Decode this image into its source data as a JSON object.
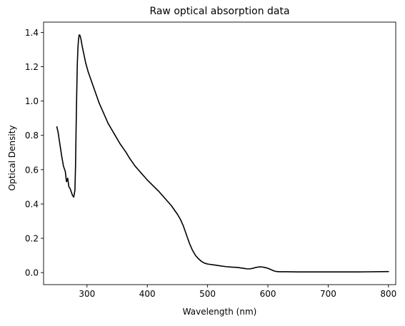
{
  "chart_data": {
    "type": "line",
    "title": "Raw optical absorption data",
    "xlabel": "Wavelength (nm)",
    "ylabel": "Optical Density",
    "xlim": [
      228,
      812
    ],
    "ylim": [
      -0.07,
      1.46
    ],
    "xticks": [
      300,
      400,
      500,
      600,
      700,
      800
    ],
    "yticks": [
      0.0,
      0.2,
      0.4,
      0.6,
      0.8,
      1.0,
      1.2,
      1.4
    ],
    "xtick_labels": [
      "300",
      "400",
      "500",
      "600",
      "700",
      "800"
    ],
    "ytick_labels": [
      "0.0",
      "0.2",
      "0.4",
      "0.6",
      "0.8",
      "1.0",
      "1.2",
      "1.4"
    ],
    "grid": false,
    "series": [
      {
        "color": "#000000",
        "x": [
          250,
          252,
          255,
          258,
          261,
          264,
          266,
          268,
          270,
          272,
          274,
          276,
          278,
          280,
          281,
          282,
          283,
          284,
          285,
          286,
          287,
          288,
          289,
          290,
          292,
          295,
          298,
          302,
          306,
          310,
          315,
          320,
          325,
          330,
          335,
          340,
          345,
          350,
          355,
          360,
          365,
          370,
          375,
          380,
          385,
          390,
          395,
          400,
          410,
          420,
          430,
          440,
          450,
          455,
          460,
          465,
          470,
          475,
          480,
          485,
          490,
          495,
          500,
          510,
          520,
          530,
          540,
          550,
          560,
          565,
          570,
          575,
          580,
          585,
          590,
          595,
          600,
          605,
          610,
          615,
          620,
          625,
          630,
          650,
          700,
          750,
          800
        ],
        "y": [
          0.85,
          0.82,
          0.75,
          0.68,
          0.62,
          0.59,
          0.53,
          0.55,
          0.5,
          0.49,
          0.47,
          0.45,
          0.44,
          0.48,
          0.62,
          0.85,
          1.05,
          1.22,
          1.31,
          1.36,
          1.385,
          1.385,
          1.375,
          1.36,
          1.32,
          1.27,
          1.22,
          1.17,
          1.13,
          1.09,
          1.04,
          0.99,
          0.95,
          0.91,
          0.87,
          0.84,
          0.81,
          0.78,
          0.75,
          0.725,
          0.7,
          0.67,
          0.645,
          0.62,
          0.6,
          0.58,
          0.56,
          0.54,
          0.505,
          0.47,
          0.43,
          0.39,
          0.34,
          0.31,
          0.27,
          0.22,
          0.17,
          0.13,
          0.1,
          0.08,
          0.065,
          0.055,
          0.05,
          0.045,
          0.04,
          0.035,
          0.032,
          0.03,
          0.025,
          0.022,
          0.022,
          0.025,
          0.03,
          0.033,
          0.033,
          0.03,
          0.025,
          0.018,
          0.01,
          0.006,
          0.005,
          0.005,
          0.005,
          0.004,
          0.004,
          0.004,
          0.006
        ]
      }
    ]
  }
}
